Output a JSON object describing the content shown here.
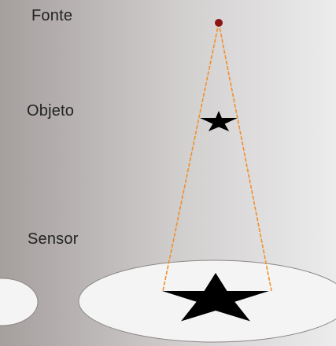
{
  "labels": {
    "source": "Fonte",
    "object": "Objeto",
    "sensor": "Sensor"
  },
  "colors": {
    "background_left": "#a59f9e",
    "background_right": "#ececec",
    "sensor_fill": "#f4f4f4",
    "sensor_edge": "#8d8787",
    "ray": "#f0902a",
    "source_point": "#8e1414",
    "star": "#000000"
  }
}
